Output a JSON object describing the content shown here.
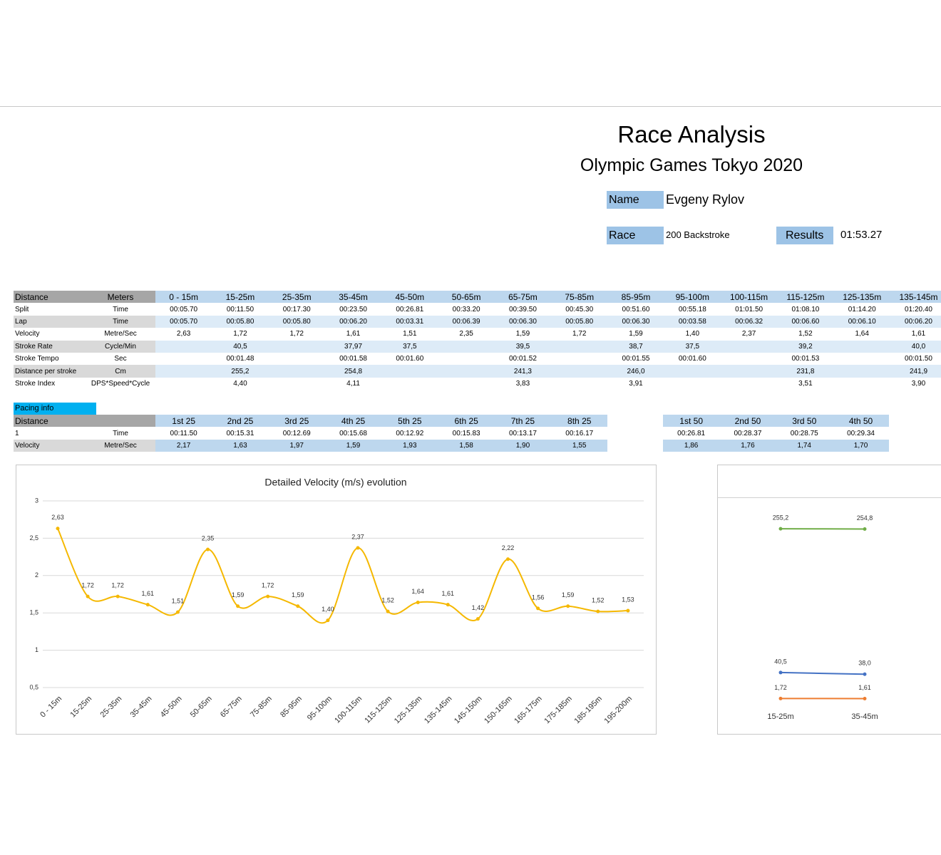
{
  "header": {
    "title": "Race Analysis",
    "subtitle": "Olympic Games Tokyo 2020"
  },
  "info": {
    "name_label": "Name",
    "name": "Evgeny Rylov",
    "race_label": "Race",
    "race": "200 Backstroke",
    "results_label": "Results",
    "results": "01:53.27"
  },
  "table": {
    "header": [
      "Distance",
      "Meters",
      "0 - 15m",
      "15-25m",
      "25-35m",
      "35-45m",
      "45-50m",
      "50-65m",
      "65-75m",
      "75-85m",
      "85-95m",
      "95-100m",
      "100-115m",
      "115-125m",
      "125-135m",
      "135-145m"
    ],
    "rows": [
      [
        "Split",
        "Time",
        "00:05.70",
        "00:11.50",
        "00:17.30",
        "00:23.50",
        "00:26.81",
        "00:33.20",
        "00:39.50",
        "00:45.30",
        "00:51.60",
        "00:55.18",
        "01:01.50",
        "01:08.10",
        "01:14.20",
        "01:20.40"
      ],
      [
        "Lap",
        "Time",
        "00:05.70",
        "00:05.80",
        "00:05.80",
        "00:06.20",
        "00:03.31",
        "00:06.39",
        "00:06.30",
        "00:05.80",
        "00:06.30",
        "00:03.58",
        "00:06.32",
        "00:06.60",
        "00:06.10",
        "00:06.20"
      ],
      [
        "Velocity",
        "Metre/Sec",
        "2,63",
        "1,72",
        "1,72",
        "1,61",
        "1,51",
        "2,35",
        "1,59",
        "1,72",
        "1,59",
        "1,40",
        "2,37",
        "1,52",
        "1,64",
        "1,61"
      ],
      [
        "Stroke Rate",
        "Cycle/Min",
        null,
        "40,5",
        null,
        "37,97",
        "37,5",
        null,
        "39,5",
        null,
        "38,7",
        "37,5",
        null,
        "39,2",
        null,
        "40,0"
      ],
      [
        "Stroke Tempo",
        "Sec",
        null,
        "00:01.48",
        null,
        "00:01.58",
        "00:01.60",
        null,
        "00:01.52",
        null,
        "00:01.55",
        "00:01.60",
        null,
        "00:01.53",
        null,
        "00:01.50"
      ],
      [
        "Distance per stroke",
        "Cm",
        null,
        "255,2",
        null,
        "254,8",
        null,
        null,
        "241,3",
        null,
        "246,0",
        null,
        null,
        "231,8",
        null,
        "241,9"
      ],
      [
        "Stroke Index",
        "DPS*Speed*Cycle",
        null,
        "4,40",
        null,
        "4,11",
        null,
        null,
        "3,83",
        null,
        "3,91",
        null,
        null,
        "3,51",
        null,
        "3,90"
      ]
    ]
  },
  "pacing": {
    "label": "Pacing info",
    "table_25": {
      "header": [
        "Distance",
        null,
        "1st 25",
        "2nd 25",
        "3rd 25",
        "4th 25",
        "5th 25",
        "6th 25",
        "7th 25",
        "8th 25"
      ],
      "rows": [
        [
          "1",
          "Time",
          "00:11.50",
          "00:15.31",
          "00:12.69",
          "00:15.68",
          "00:12.92",
          "00:15.83",
          "00:13.17",
          "00:16.17"
        ],
        [
          "Velocity",
          "Metre/Sec",
          "2,17",
          "1,63",
          "1,97",
          "1,59",
          "1,93",
          "1,58",
          "1,90",
          "1,55"
        ]
      ]
    },
    "table_50": {
      "header": [
        "1st 50",
        "2nd 50",
        "3rd 50",
        "4th 50"
      ],
      "rows": [
        [
          "00:26.81",
          "00:28.37",
          "00:28.75",
          "00:29.34"
        ],
        [
          "1,86",
          "1,76",
          "1,74",
          "1,70"
        ]
      ]
    }
  },
  "chart_data": [
    {
      "type": "line",
      "title": "Detailed Velocity (m/s)  evolution",
      "categories": [
        "0 - 15m",
        "15-25m",
        "25-35m",
        "35-45m",
        "45-50m",
        "50-65m",
        "65-75m",
        "75-85m",
        "85-95m",
        "95-100m",
        "100-115m",
        "115-125m",
        "125-135m",
        "135-145m",
        "145-150m",
        "150-165m",
        "165-175m",
        "175-185m",
        "185-195m",
        "195-200m"
      ],
      "values": [
        2.63,
        1.72,
        1.72,
        1.61,
        1.51,
        2.35,
        1.59,
        1.72,
        1.59,
        1.4,
        2.37,
        1.52,
        1.64,
        1.61,
        1.42,
        2.22,
        1.56,
        1.59,
        1.52,
        1.53
      ],
      "value_labels": [
        "2,63",
        "1,72",
        "1,72",
        "1,61",
        "1,51",
        "2,35",
        "1,59",
        "1,72",
        "1,59",
        "1,40",
        "2,37",
        "1,52",
        "1,64",
        "1,61",
        "1,42",
        "2,22",
        "1,56",
        "1,59",
        "1,52",
        "1,53"
      ],
      "color": "#f5b800",
      "smooth": true,
      "grid": true,
      "ylim": [
        0.5,
        3
      ],
      "yticks": [
        {
          "value": 0.5,
          "label": "0,5"
        },
        1,
        {
          "value": 1.5,
          "label": "1,5"
        },
        2,
        {
          "value": 2.5,
          "label": "2,5"
        },
        3
      ]
    },
    {
      "type": "line",
      "categories": [
        "15-25m",
        "35-45m"
      ],
      "series": [
        {
          "color": "#70ad47",
          "values": [
            255.2,
            254.8
          ],
          "value_labels": [
            "255,2",
            "254,8"
          ]
        },
        {
          "color": "#4472c4",
          "values": [
            40.5,
            38.0
          ],
          "value_labels": [
            "40,5",
            "38,0"
          ]
        },
        {
          "color": "#ed7d31",
          "values": [
            1.72,
            1.61
          ],
          "value_labels": [
            "1,72",
            "1,61"
          ]
        }
      ],
      "smooth": true,
      "ylim": [
        0,
        300
      ]
    }
  ]
}
